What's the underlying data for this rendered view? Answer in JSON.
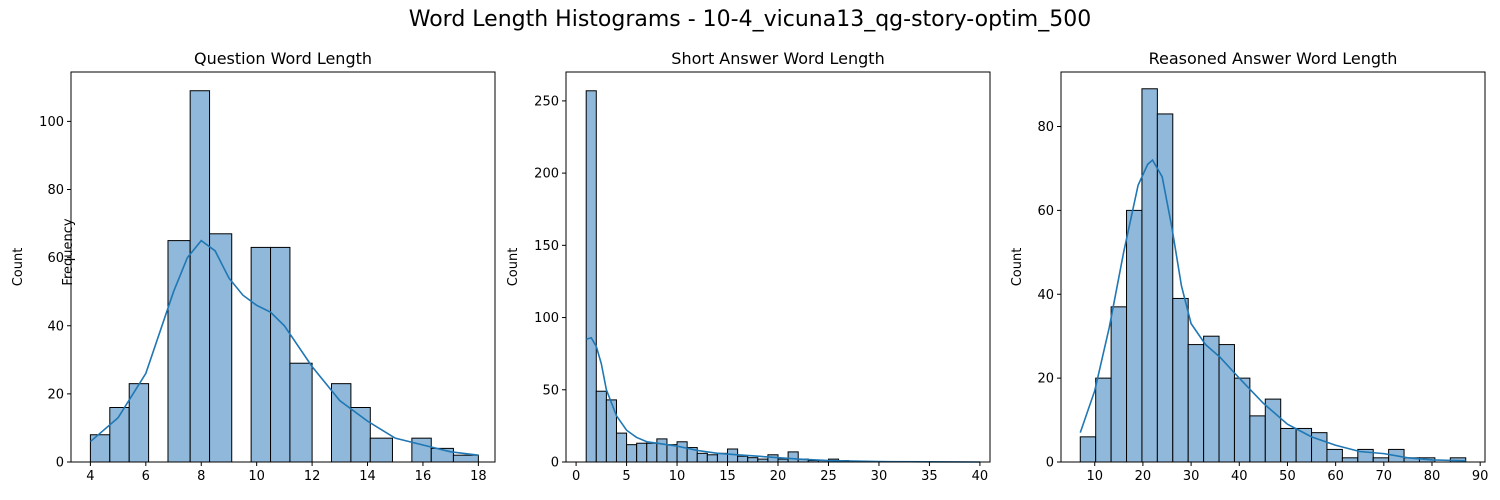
{
  "figure_title": "Word Length Histograms - 10-4_vicuna13_qg-story-optim_500",
  "overlay_label": "Frequency",
  "colors": {
    "bar": "#8fb8da",
    "edge": "#000000",
    "kde": "#1f77b4"
  },
  "chart_data": [
    {
      "type": "bar",
      "title": "Question Word Length",
      "xlabel": "",
      "ylabel": "Count",
      "xlim": [
        3.3,
        18.6
      ],
      "ylim": [
        0,
        114.5
      ],
      "xticks": [
        4,
        6,
        8,
        10,
        12,
        14,
        16,
        18
      ],
      "yticks": [
        0,
        20,
        40,
        60,
        80,
        100
      ],
      "bins": [
        {
          "x0": 4.0,
          "x1": 4.7,
          "count": 8
        },
        {
          "x0": 4.7,
          "x1": 5.4,
          "count": 16
        },
        {
          "x0": 5.4,
          "x1": 6.1,
          "count": 23
        },
        {
          "x0": 6.1,
          "x1": 6.8,
          "count": 0
        },
        {
          "x0": 6.8,
          "x1": 7.6,
          "count": 65
        },
        {
          "x0": 7.6,
          "x1": 8.3,
          "count": 109
        },
        {
          "x0": 8.3,
          "x1": 9.1,
          "count": 67
        },
        {
          "x0": 9.1,
          "x1": 9.8,
          "count": 0
        },
        {
          "x0": 9.8,
          "x1": 10.5,
          "count": 63
        },
        {
          "x0": 10.5,
          "x1": 11.2,
          "count": 63
        },
        {
          "x0": 11.2,
          "x1": 12.0,
          "count": 29
        },
        {
          "x0": 12.0,
          "x1": 12.7,
          "count": 0
        },
        {
          "x0": 12.7,
          "x1": 13.4,
          "count": 23
        },
        {
          "x0": 13.4,
          "x1": 14.1,
          "count": 16
        },
        {
          "x0": 14.1,
          "x1": 14.9,
          "count": 7
        },
        {
          "x0": 14.9,
          "x1": 15.6,
          "count": 0
        },
        {
          "x0": 15.6,
          "x1": 16.3,
          "count": 7
        },
        {
          "x0": 16.3,
          "x1": 17.1,
          "count": 4
        },
        {
          "x0": 17.1,
          "x1": 18.0,
          "count": 2
        }
      ],
      "kde": [
        [
          4,
          6
        ],
        [
          5,
          13
        ],
        [
          6,
          26
        ],
        [
          7,
          50
        ],
        [
          7.5,
          60
        ],
        [
          8,
          65
        ],
        [
          8.5,
          62
        ],
        [
          9,
          54
        ],
        [
          9.5,
          49
        ],
        [
          10,
          46
        ],
        [
          10.5,
          44
        ],
        [
          11,
          40
        ],
        [
          12,
          28
        ],
        [
          13,
          18
        ],
        [
          14,
          12
        ],
        [
          15,
          7
        ],
        [
          16,
          5
        ],
        [
          17,
          3
        ],
        [
          18,
          2
        ]
      ]
    },
    {
      "type": "bar",
      "title": "Short Answer Word Length",
      "xlabel": "",
      "ylabel": "Count",
      "xlim": [
        -1.0,
        41.0
      ],
      "ylim": [
        0,
        270
      ],
      "xticks": [
        0,
        5,
        10,
        15,
        20,
        25,
        30,
        35,
        40
      ],
      "yticks": [
        0,
        50,
        100,
        150,
        200,
        250
      ],
      "bins": [
        {
          "x0": 1,
          "x1": 2,
          "count": 257
        },
        {
          "x0": 2,
          "x1": 3,
          "count": 49
        },
        {
          "x0": 3,
          "x1": 4,
          "count": 43
        },
        {
          "x0": 4,
          "x1": 5,
          "count": 20
        },
        {
          "x0": 5,
          "x1": 6,
          "count": 12
        },
        {
          "x0": 6,
          "x1": 7,
          "count": 13
        },
        {
          "x0": 7,
          "x1": 8,
          "count": 13
        },
        {
          "x0": 8,
          "x1": 9,
          "count": 16
        },
        {
          "x0": 9,
          "x1": 10,
          "count": 12
        },
        {
          "x0": 10,
          "x1": 11,
          "count": 14
        },
        {
          "x0": 11,
          "x1": 12,
          "count": 10
        },
        {
          "x0": 12,
          "x1": 13,
          "count": 6
        },
        {
          "x0": 13,
          "x1": 14,
          "count": 5
        },
        {
          "x0": 14,
          "x1": 15,
          "count": 6
        },
        {
          "x0": 15,
          "x1": 16,
          "count": 9
        },
        {
          "x0": 16,
          "x1": 17,
          "count": 4
        },
        {
          "x0": 17,
          "x1": 18,
          "count": 3
        },
        {
          "x0": 18,
          "x1": 19,
          "count": 2
        },
        {
          "x0": 19,
          "x1": 20,
          "count": 5
        },
        {
          "x0": 20,
          "x1": 21,
          "count": 2
        },
        {
          "x0": 21,
          "x1": 22,
          "count": 7
        },
        {
          "x0": 22,
          "x1": 23,
          "count": 2
        },
        {
          "x0": 23,
          "x1": 24,
          "count": 1
        },
        {
          "x0": 24,
          "x1": 25,
          "count": 1
        },
        {
          "x0": 25,
          "x1": 26,
          "count": 2
        },
        {
          "x0": 26,
          "x1": 27,
          "count": 1
        }
      ],
      "kde": [
        [
          1,
          85
        ],
        [
          1.5,
          86
        ],
        [
          2,
          80
        ],
        [
          2.5,
          68
        ],
        [
          3,
          50
        ],
        [
          4,
          32
        ],
        [
          5,
          22
        ],
        [
          6,
          17
        ],
        [
          7,
          14
        ],
        [
          8,
          13
        ],
        [
          9,
          12
        ],
        [
          10,
          11
        ],
        [
          12,
          8
        ],
        [
          14,
          6
        ],
        [
          16,
          5
        ],
        [
          18,
          4
        ],
        [
          20,
          3
        ],
        [
          22,
          2
        ],
        [
          25,
          1
        ],
        [
          30,
          0.3
        ],
        [
          35,
          0.1
        ],
        [
          40,
          0
        ]
      ]
    },
    {
      "type": "bar",
      "title": "Reasoned Answer Word Length",
      "xlabel": "",
      "ylabel": "Count",
      "xlim": [
        3.0,
        91.0
      ],
      "ylim": [
        0,
        93
      ],
      "xticks": [
        10,
        20,
        30,
        40,
        50,
        60,
        70,
        80,
        90
      ],
      "yticks": [
        0,
        20,
        40,
        60,
        80
      ],
      "bins": [
        {
          "x0": 7.0,
          "x1": 10.2,
          "count": 6
        },
        {
          "x0": 10.2,
          "x1": 13.4,
          "count": 20
        },
        {
          "x0": 13.4,
          "x1": 16.6,
          "count": 37
        },
        {
          "x0": 16.6,
          "x1": 19.8,
          "count": 60
        },
        {
          "x0": 19.8,
          "x1": 23.0,
          "count": 89
        },
        {
          "x0": 23.0,
          "x1": 26.2,
          "count": 83
        },
        {
          "x0": 26.2,
          "x1": 29.4,
          "count": 39
        },
        {
          "x0": 29.4,
          "x1": 32.6,
          "count": 28
        },
        {
          "x0": 32.6,
          "x1": 35.8,
          "count": 30
        },
        {
          "x0": 35.8,
          "x1": 39.0,
          "count": 28
        },
        {
          "x0": 39.0,
          "x1": 42.2,
          "count": 20
        },
        {
          "x0": 42.2,
          "x1": 45.4,
          "count": 11
        },
        {
          "x0": 45.4,
          "x1": 48.6,
          "count": 15
        },
        {
          "x0": 48.6,
          "x1": 51.8,
          "count": 8
        },
        {
          "x0": 51.8,
          "x1": 55.0,
          "count": 8
        },
        {
          "x0": 55.0,
          "x1": 58.2,
          "count": 7
        },
        {
          "x0": 58.2,
          "x1": 61.4,
          "count": 3
        },
        {
          "x0": 61.4,
          "x1": 64.6,
          "count": 1
        },
        {
          "x0": 64.6,
          "x1": 67.8,
          "count": 3
        },
        {
          "x0": 67.8,
          "x1": 71.0,
          "count": 1
        },
        {
          "x0": 71.0,
          "x1": 74.2,
          "count": 3
        },
        {
          "x0": 74.2,
          "x1": 77.4,
          "count": 1
        },
        {
          "x0": 77.4,
          "x1": 80.6,
          "count": 1
        },
        {
          "x0": 80.6,
          "x1": 83.8,
          "count": 0
        },
        {
          "x0": 83.8,
          "x1": 87.0,
          "count": 1
        }
      ],
      "kde": [
        [
          7,
          7
        ],
        [
          10,
          17
        ],
        [
          13,
          32
        ],
        [
          16,
          50
        ],
        [
          19,
          66
        ],
        [
          21,
          71
        ],
        [
          22,
          72
        ],
        [
          24,
          68
        ],
        [
          26,
          56
        ],
        [
          28,
          42
        ],
        [
          30,
          33
        ],
        [
          33,
          28
        ],
        [
          36,
          25
        ],
        [
          40,
          20
        ],
        [
          45,
          14
        ],
        [
          50,
          9
        ],
        [
          55,
          6
        ],
        [
          60,
          4
        ],
        [
          65,
          2.5
        ],
        [
          70,
          2
        ],
        [
          75,
          1
        ],
        [
          80,
          0.5
        ],
        [
          87,
          0.3
        ]
      ]
    }
  ]
}
